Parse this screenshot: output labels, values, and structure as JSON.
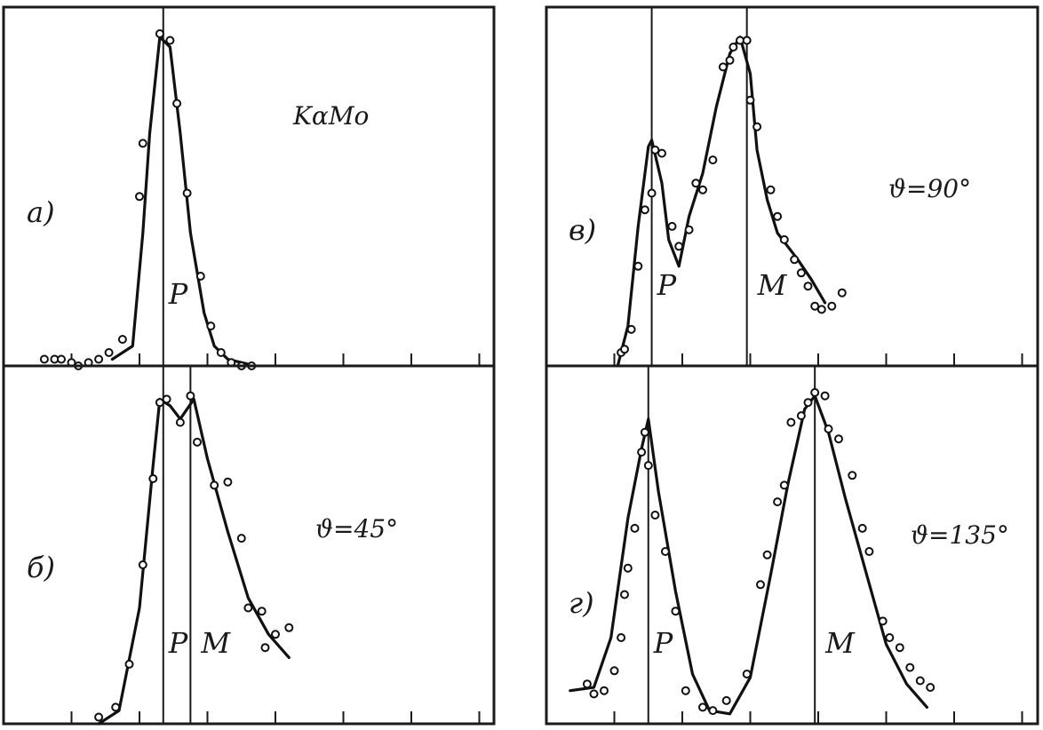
{
  "figure_label": "KαMo",
  "chart_data": [
    {
      "type": "line",
      "panel_label": "а)",
      "annotation": "",
      "x_range": [
        0,
        11
      ],
      "y_range": [
        0,
        100
      ],
      "ticks": [
        1,
        2,
        3,
        4,
        5,
        6,
        7
      ],
      "markers": [
        {
          "label": "P",
          "x": 2.35
        }
      ],
      "series": [
        {
          "curve": [
            [
              1.6,
              2
            ],
            [
              1.9,
              6
            ],
            [
              2.05,
              40
            ],
            [
              2.15,
              70
            ],
            [
              2.3,
              99
            ],
            [
              2.45,
              96
            ],
            [
              2.6,
              70
            ],
            [
              2.75,
              40
            ],
            [
              2.95,
              16
            ],
            [
              3.1,
              6
            ],
            [
              3.3,
              2
            ],
            [
              3.6,
              0.5
            ]
          ],
          "points": [
            [
              0.6,
              2
            ],
            [
              0.75,
              2
            ],
            [
              0.85,
              2
            ],
            [
              1.0,
              1
            ],
            [
              1.1,
              0
            ],
            [
              1.25,
              1
            ],
            [
              1.4,
              2
            ],
            [
              1.55,
              4
            ],
            [
              1.75,
              8
            ],
            [
              2.0,
              51
            ],
            [
              2.05,
              67
            ],
            [
              2.3,
              100
            ],
            [
              2.45,
              98
            ],
            [
              2.55,
              79
            ],
            [
              2.7,
              52
            ],
            [
              2.9,
              27
            ],
            [
              3.05,
              12
            ],
            [
              3.2,
              4
            ],
            [
              3.35,
              1
            ],
            [
              3.5,
              0
            ],
            [
              3.65,
              0
            ]
          ]
        }
      ]
    },
    {
      "type": "line",
      "panel_label": "б)",
      "annotation": "ϑ=45°",
      "x_range": [
        0,
        11
      ],
      "y_range": [
        0,
        100
      ],
      "ticks": [
        1,
        2,
        3,
        4,
        5,
        6,
        7
      ],
      "markers": [
        {
          "label": "P",
          "x": 2.35
        },
        {
          "label": "M",
          "x": 2.75
        }
      ],
      "series": [
        {
          "curve": [
            [
              1.4,
              0
            ],
            [
              1.7,
              4
            ],
            [
              2.0,
              35
            ],
            [
              2.2,
              78
            ],
            [
              2.3,
              98
            ],
            [
              2.45,
              96
            ],
            [
              2.6,
              92
            ],
            [
              2.8,
              98
            ],
            [
              3.0,
              80
            ],
            [
              3.3,
              58
            ],
            [
              3.6,
              38
            ],
            [
              3.9,
              27
            ],
            [
              4.2,
              20
            ]
          ],
          "points": [
            [
              1.4,
              2
            ],
            [
              1.65,
              5
            ],
            [
              1.85,
              18
            ],
            [
              2.05,
              48
            ],
            [
              2.2,
              74
            ],
            [
              2.3,
              97
            ],
            [
              2.4,
              98
            ],
            [
              2.6,
              91
            ],
            [
              2.75,
              99
            ],
            [
              2.85,
              85
            ],
            [
              3.1,
              72
            ],
            [
              3.3,
              73
            ],
            [
              3.5,
              56
            ],
            [
              3.6,
              35
            ],
            [
              3.8,
              34
            ],
            [
              3.85,
              23
            ],
            [
              4.0,
              27
            ],
            [
              4.2,
              29
            ]
          ]
        }
      ]
    },
    {
      "type": "line",
      "panel_label": "в)",
      "annotation": "ϑ=90°",
      "x_range": [
        0,
        11
      ],
      "y_range": [
        0,
        100
      ],
      "ticks": [
        1,
        2,
        3,
        4,
        5,
        6,
        7
      ],
      "markers": [
        {
          "label": "P",
          "x": 1.55
        },
        {
          "label": "M",
          "x": 2.95
        }
      ],
      "series": [
        {
          "curve": [
            [
              1.05,
              0
            ],
            [
              1.2,
              12
            ],
            [
              1.35,
              42
            ],
            [
              1.5,
              66
            ],
            [
              1.55,
              68
            ],
            [
              1.7,
              55
            ],
            [
              1.8,
              38
            ],
            [
              1.95,
              30
            ],
            [
              2.1,
              45
            ],
            [
              2.3,
              58
            ],
            [
              2.5,
              78
            ],
            [
              2.7,
              94
            ],
            [
              2.85,
              99
            ],
            [
              3.0,
              88
            ],
            [
              3.1,
              65
            ],
            [
              3.25,
              50
            ],
            [
              3.4,
              40
            ],
            [
              3.7,
              32
            ],
            [
              3.9,
              26
            ],
            [
              4.1,
              19
            ]
          ],
          "points": [
            [
              1.1,
              4
            ],
            [
              1.15,
              5
            ],
            [
              1.25,
              11
            ],
            [
              1.35,
              30
            ],
            [
              1.45,
              47
            ],
            [
              1.55,
              52
            ],
            [
              1.6,
              65
            ],
            [
              1.7,
              64
            ],
            [
              1.85,
              42
            ],
            [
              1.95,
              36
            ],
            [
              2.1,
              41
            ],
            [
              2.2,
              55
            ],
            [
              2.3,
              53
            ],
            [
              2.45,
              62
            ],
            [
              2.6,
              90
            ],
            [
              2.7,
              92
            ],
            [
              2.75,
              96
            ],
            [
              2.85,
              98
            ],
            [
              2.95,
              98
            ],
            [
              3.0,
              80
            ],
            [
              3.1,
              72
            ],
            [
              3.3,
              53
            ],
            [
              3.4,
              45
            ],
            [
              3.5,
              38
            ],
            [
              3.65,
              32
            ],
            [
              3.75,
              28
            ],
            [
              3.85,
              24
            ],
            [
              3.95,
              18
            ],
            [
              4.05,
              17
            ],
            [
              4.2,
              18
            ],
            [
              4.35,
              22
            ]
          ]
        }
      ]
    },
    {
      "type": "line",
      "panel_label": "г)",
      "annotation": "ϑ=135°",
      "x_range": [
        0,
        11
      ],
      "y_range": [
        0,
        100
      ],
      "ticks": [
        1,
        2,
        3,
        4,
        5,
        6,
        7
      ],
      "markers": [
        {
          "label": "P",
          "x": 1.5
        },
        {
          "label": "M",
          "x": 3.95
        }
      ],
      "series": [
        {
          "curve": [
            [
              0.35,
              10
            ],
            [
              0.7,
              11
            ],
            [
              0.95,
              26
            ],
            [
              1.2,
              62
            ],
            [
              1.4,
              83
            ],
            [
              1.5,
              92
            ],
            [
              1.65,
              70
            ],
            [
              1.9,
              40
            ],
            [
              2.15,
              15
            ],
            [
              2.4,
              4
            ],
            [
              2.7,
              3
            ],
            [
              3.0,
              14
            ],
            [
              3.3,
              45
            ],
            [
              3.55,
              72
            ],
            [
              3.8,
              95
            ],
            [
              3.95,
              99
            ],
            [
              4.15,
              88
            ],
            [
              4.4,
              68
            ],
            [
              4.7,
              46
            ],
            [
              5.0,
              24
            ],
            [
              5.3,
              12
            ],
            [
              5.6,
              5
            ]
          ],
          "points": [
            [
              0.6,
              12
            ],
            [
              0.7,
              9
            ],
            [
              0.85,
              10
            ],
            [
              1.0,
              16
            ],
            [
              1.1,
              26
            ],
            [
              1.15,
              39
            ],
            [
              1.2,
              47
            ],
            [
              1.3,
              59
            ],
            [
              1.4,
              82
            ],
            [
              1.45,
              88
            ],
            [
              1.5,
              78
            ],
            [
              1.6,
              63
            ],
            [
              1.75,
              52
            ],
            [
              1.9,
              34
            ],
            [
              2.05,
              10
            ],
            [
              2.3,
              5
            ],
            [
              2.45,
              4
            ],
            [
              2.65,
              7
            ],
            [
              2.95,
              15
            ],
            [
              3.15,
              42
            ],
            [
              3.25,
              51
            ],
            [
              3.4,
              67
            ],
            [
              3.5,
              72
            ],
            [
              3.6,
              91
            ],
            [
              3.75,
              93
            ],
            [
              3.85,
              97
            ],
            [
              3.95,
              100
            ],
            [
              4.1,
              99
            ],
            [
              4.15,
              89
            ],
            [
              4.3,
              86
            ],
            [
              4.5,
              75
            ],
            [
              4.65,
              59
            ],
            [
              4.75,
              52
            ],
            [
              4.95,
              31
            ],
            [
              5.05,
              26
            ],
            [
              5.2,
              23
            ],
            [
              5.35,
              17
            ],
            [
              5.5,
              13
            ],
            [
              5.65,
              11
            ]
          ]
        }
      ]
    }
  ]
}
